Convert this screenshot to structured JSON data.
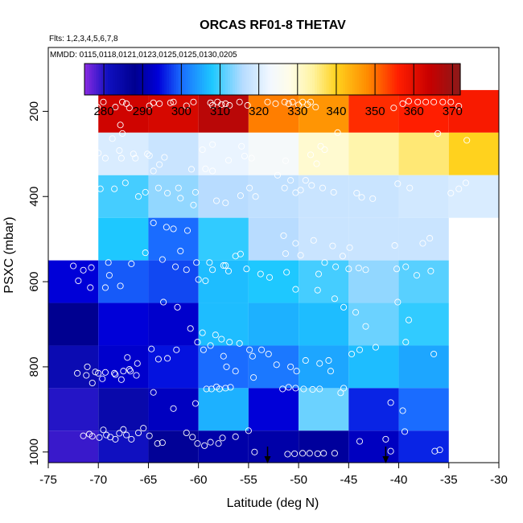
{
  "chart_data": {
    "type": "heatmap",
    "title": "ORCAS RF01-8 THETAV",
    "flights_note": "Flts: 1,2,3,4,5,6,7,8",
    "dates_note": "MMDD: 0115,0118,0121,0123,0125,0125,0130,0205",
    "xlabel": "Latitude (deg N)",
    "ylabel": "PSXC (mbar)",
    "xlim": [
      -75,
      -30
    ],
    "ylim": [
      1025,
      50
    ],
    "x_ticks": [
      -75,
      -70,
      -65,
      -60,
      -55,
      -50,
      -45,
      -40,
      -35,
      -30
    ],
    "x_tick_labels": [
      "-75",
      "-70",
      "-65",
      "-60",
      "-55",
      "-50",
      "-45",
      "-40",
      "-35",
      "-30"
    ],
    "y_ticks": [
      200,
      400,
      600,
      800,
      1000
    ],
    "y_tick_labels": [
      "200",
      "400",
      "600",
      "800",
      "1000"
    ],
    "colorbar": {
      "min": 275,
      "max": 372,
      "ticks": [
        280,
        290,
        300,
        310,
        320,
        330,
        340,
        350,
        360,
        370
      ],
      "tick_labels": [
        "280",
        "290",
        "300",
        "310",
        "320",
        "330",
        "340",
        "350",
        "360",
        "370"
      ],
      "stops": [
        [
          275,
          "#8a2be2"
        ],
        [
          281,
          "#1010c0"
        ],
        [
          288,
          "#000090"
        ],
        [
          294,
          "#0000d8"
        ],
        [
          300,
          "#1a6cff"
        ],
        [
          308,
          "#1ec8ff"
        ],
        [
          316,
          "#b8dcff"
        ],
        [
          323,
          "#f2f8ff"
        ],
        [
          328,
          "#fffde8"
        ],
        [
          334,
          "#fff3a0"
        ],
        [
          340,
          "#ffd21e"
        ],
        [
          348,
          "#ff8c00"
        ],
        [
          356,
          "#ff1e00"
        ],
        [
          364,
          "#c80000"
        ],
        [
          372,
          "#8b1a1a"
        ]
      ]
    },
    "lat_bins": [
      -75,
      -70,
      -65,
      -60,
      -55,
      -50,
      -45,
      -40,
      -35,
      -30
    ],
    "press_bins": [
      150,
      250,
      350,
      450,
      550,
      650,
      750,
      850,
      950,
      1025
    ],
    "cells": [
      [
        null,
        363,
        362,
        366,
        349,
        347,
        355,
        356,
        357
      ],
      [
        null,
        320,
        318,
        322,
        324,
        330,
        333,
        336,
        340
      ],
      [
        null,
        310,
        314,
        316,
        317,
        318,
        318,
        319,
        320
      ],
      [
        null,
        308,
        300,
        309,
        316,
        318,
        318,
        318,
        null
      ],
      [
        294,
        299,
        298,
        307,
        308,
        310,
        314,
        311,
        null
      ],
      [
        288,
        294,
        293,
        307,
        306,
        307,
        312,
        309,
        null
      ],
      [
        283,
        293,
        295,
        300,
        301,
        305,
        307,
        305,
        null
      ],
      [
        280,
        284,
        292,
        306,
        294,
        312,
        296,
        300,
        null
      ],
      [
        279,
        281,
        287,
        290,
        290,
        289,
        292,
        296,
        null
      ]
    ],
    "points": [
      [
        -72.5,
        190
      ],
      [
        -70.8,
        188
      ],
      [
        -70.1,
        190
      ],
      [
        -69.5,
        178
      ],
      [
        -68.3,
        190
      ],
      [
        -67.6,
        178
      ],
      [
        -67.2,
        182
      ],
      [
        -66.9,
        192
      ],
      [
        -64.9,
        187
      ],
      [
        -64.5,
        180
      ],
      [
        -63.9,
        182
      ],
      [
        -62.8,
        180
      ],
      [
        -62.5,
        178
      ],
      [
        -61.2,
        187
      ],
      [
        -60.5,
        178
      ],
      [
        -58.8,
        180
      ],
      [
        -58.6,
        186
      ],
      [
        -58.1,
        178
      ],
      [
        -57.7,
        184
      ],
      [
        -57.3,
        182
      ],
      [
        -56.9,
        186
      ],
      [
        -55.9,
        178
      ],
      [
        -55.1,
        186
      ],
      [
        -53.1,
        178
      ],
      [
        -52.3,
        182
      ],
      [
        -51.4,
        178
      ],
      [
        -51.0,
        182
      ],
      [
        -50.6,
        178
      ],
      [
        -50.0,
        185
      ],
      [
        -49.6,
        178
      ],
      [
        -49.1,
        184
      ],
      [
        -48.8,
        178
      ],
      [
        -48.3,
        190
      ],
      [
        -40.5,
        192
      ],
      [
        -39.6,
        182
      ],
      [
        -39.0,
        176
      ],
      [
        -38.1,
        178
      ],
      [
        -37.3,
        178
      ],
      [
        -36.5,
        178
      ],
      [
        -35.6,
        178
      ],
      [
        -34.8,
        178
      ],
      [
        -34.0,
        188
      ],
      [
        -67.8,
        232
      ],
      [
        -67.6,
        252
      ],
      [
        -68.6,
        264
      ],
      [
        -70.9,
        306
      ],
      [
        -67.7,
        310
      ],
      [
        -66.5,
        300
      ],
      [
        -64.9,
        304
      ],
      [
        -63.4,
        308
      ],
      [
        -63.9,
        325
      ],
      [
        -60.7,
        336
      ],
      [
        -59.3,
        335
      ],
      [
        -58.6,
        340
      ],
      [
        -59.6,
        290
      ],
      [
        -58.6,
        278
      ],
      [
        -57.0,
        315
      ],
      [
        -55.4,
        305
      ],
      [
        -55.7,
        282
      ],
      [
        -54.7,
        310
      ],
      [
        -52.1,
        350
      ],
      [
        -51.3,
        316
      ],
      [
        -48.8,
        302
      ],
      [
        -48.2,
        323
      ],
      [
        -47.8,
        282
      ],
      [
        -47.4,
        290
      ],
      [
        -46.1,
        250
      ],
      [
        -36.1,
        252
      ],
      [
        -33.2,
        268
      ],
      [
        -70.0,
        298
      ],
      [
        -69.3,
        310
      ],
      [
        -67.9,
        292
      ],
      [
        -66.3,
        310
      ],
      [
        -65.1,
        300
      ],
      [
        -64.5,
        340
      ],
      [
        -64.0,
        380
      ],
      [
        -63.1,
        392
      ],
      [
        -62.0,
        380
      ],
      [
        -60.5,
        420
      ],
      [
        -60.3,
        390
      ],
      [
        -58.2,
        410
      ],
      [
        -57.3,
        415
      ],
      [
        -55.8,
        398
      ],
      [
        -54.9,
        380
      ],
      [
        -54.3,
        400
      ],
      [
        -51.4,
        380
      ],
      [
        -50.8,
        362
      ],
      [
        -50.3,
        391
      ],
      [
        -49.8,
        385
      ],
      [
        -49.3,
        362
      ],
      [
        -48.7,
        374
      ],
      [
        -47.6,
        380
      ],
      [
        -46.5,
        390
      ],
      [
        -44.2,
        392
      ],
      [
        -43.7,
        402
      ],
      [
        -42.6,
        405
      ],
      [
        -40.1,
        370
      ],
      [
        -38.9,
        380
      ],
      [
        -34.8,
        392
      ],
      [
        -34.0,
        382
      ],
      [
        -33.3,
        368
      ],
      [
        -72.2,
        380
      ],
      [
        -69.8,
        382
      ],
      [
        -68.4,
        382
      ],
      [
        -67.3,
        368
      ],
      [
        -66.0,
        400
      ],
      [
        -65.3,
        390
      ],
      [
        -61.8,
        404
      ],
      [
        -62.5,
        476
      ],
      [
        -64.5,
        462
      ],
      [
        -63.2,
        472
      ],
      [
        -61.1,
        480
      ],
      [
        -61.8,
        528
      ],
      [
        -60.2,
        555
      ],
      [
        -58.6,
        572
      ],
      [
        -57.3,
        562
      ],
      [
        -56.3,
        540
      ],
      [
        -55.8,
        535
      ],
      [
        -51.5,
        492
      ],
      [
        -51.3,
        534
      ],
      [
        -50.3,
        510
      ],
      [
        -48.5,
        503
      ],
      [
        -46.6,
        516
      ],
      [
        -49.8,
        538
      ],
      [
        -47.4,
        555
      ],
      [
        -45.6,
        540
      ],
      [
        -44.9,
        520
      ],
      [
        -40.4,
        515
      ],
      [
        -37.6,
        510
      ],
      [
        -36.9,
        498
      ],
      [
        -72.5,
        563
      ],
      [
        -71.5,
        573
      ],
      [
        -70.7,
        567
      ],
      [
        -69.0,
        555
      ],
      [
        -68.9,
        585
      ],
      [
        -66.7,
        558
      ],
      [
        -65.3,
        532
      ],
      [
        -63.6,
        548
      ],
      [
        -62.3,
        565
      ],
      [
        -61.2,
        572
      ],
      [
        -60.0,
        595
      ],
      [
        -59.3,
        598
      ],
      [
        -58.9,
        555
      ],
      [
        -57.5,
        562
      ],
      [
        -57.0,
        575
      ],
      [
        -55.2,
        570
      ],
      [
        -53.8,
        582
      ],
      [
        -52.9,
        590
      ],
      [
        -51.2,
        578
      ],
      [
        -48.0,
        582
      ],
      [
        -46.3,
        565
      ],
      [
        -45.0,
        570
      ],
      [
        -44.0,
        568
      ],
      [
        -43.3,
        572
      ],
      [
        -40.2,
        570
      ],
      [
        -39.3,
        565
      ],
      [
        -38.2,
        585
      ],
      [
        -36.8,
        575
      ],
      [
        -72.0,
        598
      ],
      [
        -70.8,
        614
      ],
      [
        -69.3,
        614
      ],
      [
        -67.8,
        610
      ],
      [
        -63.5,
        648
      ],
      [
        -62.1,
        660
      ],
      [
        -60.8,
        710
      ],
      [
        -59.6,
        720
      ],
      [
        -58.3,
        725
      ],
      [
        -57.7,
        735
      ],
      [
        -56.9,
        742
      ],
      [
        -55.9,
        745
      ],
      [
        -54.9,
        760
      ],
      [
        -54.6,
        775
      ],
      [
        -53.7,
        760
      ],
      [
        -50.3,
        618
      ],
      [
        -48.1,
        620
      ],
      [
        -46.4,
        640
      ],
      [
        -45.5,
        660
      ],
      [
        -44.3,
        672
      ],
      [
        -43.3,
        705
      ],
      [
        -40.1,
        648
      ],
      [
        -39.0,
        690
      ],
      [
        -71.1,
        800
      ],
      [
        -70.0,
        815
      ],
      [
        -70.6,
        838
      ],
      [
        -69.6,
        828
      ],
      [
        -68.3,
        818
      ],
      [
        -67.7,
        830
      ],
      [
        -67.1,
        778
      ],
      [
        -66.8,
        810
      ],
      [
        -66.1,
        792
      ],
      [
        -64.7,
        758
      ],
      [
        -64.0,
        782
      ],
      [
        -63.1,
        780
      ],
      [
        -62.2,
        760
      ],
      [
        -60.1,
        742
      ],
      [
        -59.5,
        760
      ],
      [
        -58.8,
        750
      ],
      [
        -57.5,
        775
      ],
      [
        -57.2,
        800
      ],
      [
        -56.3,
        810
      ],
      [
        -54.5,
        825
      ],
      [
        -53.0,
        770
      ],
      [
        -52.2,
        795
      ],
      [
        -50.8,
        800
      ],
      [
        -50.2,
        810
      ],
      [
        -49.3,
        785
      ],
      [
        -47.9,
        792
      ],
      [
        -47.0,
        785
      ],
      [
        -46.8,
        810
      ],
      [
        -44.7,
        770
      ],
      [
        -43.9,
        760
      ],
      [
        -42.3,
        754
      ],
      [
        -39.3,
        742
      ],
      [
        -36.5,
        770
      ],
      [
        -72.1,
        815
      ],
      [
        -71.2,
        820
      ],
      [
        -70.3,
        812
      ],
      [
        -69.3,
        813
      ],
      [
        -68.4,
        815
      ],
      [
        -67.5,
        810
      ],
      [
        -66.9,
        806
      ],
      [
        -66.2,
        820
      ],
      [
        -64.5,
        860
      ],
      [
        -62.5,
        898
      ],
      [
        -60.3,
        886
      ],
      [
        -59.2,
        852
      ],
      [
        -58.7,
        852
      ],
      [
        -58.2,
        847
      ],
      [
        -57.9,
        852
      ],
      [
        -57.3,
        850
      ],
      [
        -56.8,
        848
      ],
      [
        -51.6,
        852
      ],
      [
        -51.0,
        848
      ],
      [
        -50.3,
        850
      ],
      [
        -49.5,
        852
      ],
      [
        -48.6,
        853
      ],
      [
        -47.9,
        852
      ],
      [
        -45.8,
        861
      ],
      [
        -45.5,
        850
      ],
      [
        -40.8,
        884
      ],
      [
        -39.6,
        903
      ],
      [
        -71.5,
        962
      ],
      [
        -70.9,
        958
      ],
      [
        -70.6,
        963
      ],
      [
        -69.9,
        966
      ],
      [
        -69.5,
        948
      ],
      [
        -69.2,
        960
      ],
      [
        -68.8,
        965
      ],
      [
        -68.3,
        970
      ],
      [
        -67.9,
        956
      ],
      [
        -67.5,
        947
      ],
      [
        -67.2,
        960
      ],
      [
        -66.7,
        970
      ],
      [
        -66.0,
        955
      ],
      [
        -65.5,
        944
      ],
      [
        -64.9,
        962
      ],
      [
        -64.1,
        980
      ],
      [
        -63.6,
        978
      ],
      [
        -61.2,
        955
      ],
      [
        -60.6,
        965
      ],
      [
        -60.1,
        980
      ],
      [
        -59.4,
        985
      ],
      [
        -58.8,
        977
      ],
      [
        -58.0,
        980
      ],
      [
        -57.6,
        967
      ],
      [
        -56.3,
        964
      ],
      [
        -55.0,
        950
      ],
      [
        -51.1,
        1005
      ],
      [
        -50.4,
        1004
      ],
      [
        -49.6,
        1003
      ],
      [
        -48.9,
        1003
      ],
      [
        -48.1,
        1004
      ],
      [
        -47.5,
        1003
      ],
      [
        -46.4,
        1003
      ],
      [
        -43.9,
        975
      ],
      [
        -40.8,
        998
      ],
      [
        -39.4,
        952
      ],
      [
        -36.4,
        998
      ],
      [
        -35.9,
        995
      ],
      [
        -41.3,
        970
      ],
      [
        -54.4,
        1000
      ]
    ],
    "markers": [
      {
        "lat": -53.1,
        "label": "arrow"
      },
      {
        "lat": -41.3,
        "label": "arrow"
      }
    ]
  }
}
